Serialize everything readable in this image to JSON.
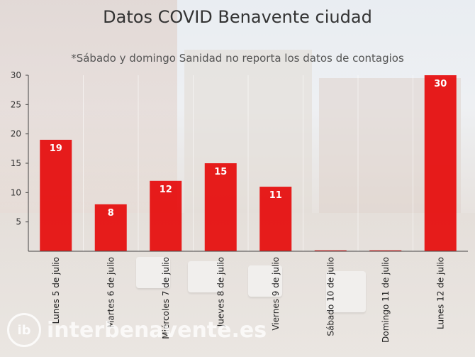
{
  "header": {
    "title": "Datos COVID Benavente ciudad",
    "subtitle": "*Sábado y domingo Sanidad no reporta los datos de contagios"
  },
  "watermark": {
    "text": "interbenavente.es"
  },
  "colors": {
    "bar": "#e60000",
    "axis": "#444444"
  },
  "chart_data": {
    "type": "bar",
    "title": "Datos COVID Benavente ciudad",
    "subtitle": "*Sábado y domingo Sanidad no reporta los datos de contagios",
    "categories": [
      "Lunes 5 de julio",
      "Martes 6 de julio",
      "Miércoles 7 de julio",
      "Jueves 8 de julio",
      "Viernes 9 de julio",
      "Sábado 10 de julio",
      "Domingo 11 de julio",
      "Lunes 12 de julio"
    ],
    "values": [
      19,
      8,
      12,
      15,
      11,
      0,
      0,
      30
    ],
    "data_labels": [
      "19",
      "8",
      "12",
      "15",
      "11",
      "",
      "",
      "30"
    ],
    "ylim": [
      0,
      30
    ],
    "yticks": [
      5,
      10,
      15,
      20,
      25,
      30
    ],
    "ytick_labels": [
      "5",
      "10",
      "15",
      "20",
      "25",
      "30"
    ],
    "xlabel": "",
    "ylabel": "",
    "grid": true,
    "legend": "none"
  }
}
